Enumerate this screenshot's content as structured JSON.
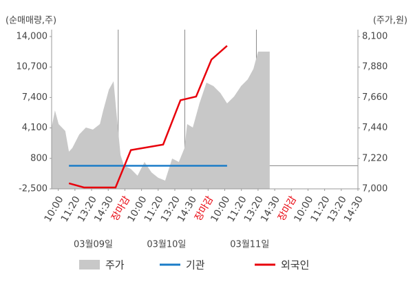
{
  "chart_data": {
    "type": "line",
    "ylabel": "(순매매량,주)",
    "y2label": "(주가,원)",
    "xlim": [
      0,
      92
    ],
    "xticks": [
      {
        "value": 2,
        "label": "10:00"
      },
      {
        "value": 7,
        "label": "11:20"
      },
      {
        "value": 12,
        "label": "13:20"
      },
      {
        "value": 17,
        "label": "14:30"
      },
      {
        "value": 22,
        "label": "장마감"
      },
      {
        "value": 27,
        "label": "10:00"
      },
      {
        "value": 32,
        "label": "11:20"
      },
      {
        "value": 37,
        "label": "13:20"
      },
      {
        "value": 42,
        "label": "14:30"
      },
      {
        "value": 47,
        "label": "장마감"
      },
      {
        "value": 52,
        "label": "10:00"
      },
      {
        "value": 57,
        "label": "11:20"
      },
      {
        "value": 62,
        "label": "13:20"
      },
      {
        "value": 67,
        "label": "14:30"
      },
      {
        "value": 72,
        "label": "장마감"
      },
      {
        "value": 77,
        "label": "10:00"
      },
      {
        "value": 82,
        "label": "11:20"
      },
      {
        "value": 87,
        "label": "13:20"
      },
      {
        "value": 92,
        "label": "14:30"
      }
    ],
    "highlight_ticks": [
      4,
      9,
      14
    ],
    "highlight_color": "#e8000b",
    "day_lines": [
      20,
      40,
      61.5
    ],
    "dates": [
      {
        "value": 12.5,
        "label": "03월09일"
      },
      {
        "value": 34.5,
        "label": "03월10일"
      },
      {
        "value": 59.5,
        "label": "03월11일"
      }
    ],
    "ylim": [
      -2500,
      14000
    ],
    "yticks": [
      {
        "value": -2500,
        "label": "-2,500"
      },
      800,
      {
        "value": 4100,
        "label": "4,100"
      },
      {
        "value": 7400,
        "label": "7,400"
      },
      {
        "value": 10700,
        "label": "10,700"
      },
      {
        "value": 14000,
        "label": "14,000"
      }
    ],
    "y2lim": [
      7000,
      8100
    ],
    "y2ticks": [
      {
        "value": 7000,
        "label": "7,000"
      },
      {
        "value": 7220,
        "label": "7,220"
      },
      {
        "value": 7440,
        "label": "7,440"
      },
      {
        "value": 7660,
        "label": "7,660"
      },
      {
        "value": 7880,
        "label": "7,880"
      },
      {
        "value": 8100,
        "label": "8,100"
      }
    ],
    "series": [
      {
        "name": "주가",
        "type": "area",
        "axis": "y2",
        "color": "#c8c8c8",
        "x": [
          0,
          1,
          2.1,
          4.1,
          5.2,
          6.2,
          8.3,
          10.3,
          12.4,
          14.5,
          15.5,
          17.2,
          18.6,
          19.6,
          20.7,
          21.7,
          23.8,
          25.8,
          27.9,
          30,
          32,
          34.1,
          36.2,
          38.2,
          39.9,
          40.7,
          42.4,
          44.4,
          46.5,
          48.6,
          50.7,
          52.7,
          54.8,
          56.9,
          58.9,
          60.6,
          62,
          64.1,
          65.5
        ],
        "values": [
          7443,
          7567,
          7468,
          7418,
          7269,
          7294,
          7393,
          7443,
          7428,
          7468,
          7567,
          7717,
          7777,
          7518,
          7244,
          7169,
          7144,
          7095,
          7194,
          7119,
          7080,
          7060,
          7219,
          7194,
          7294,
          7468,
          7443,
          7617,
          7767,
          7742,
          7692,
          7617,
          7667,
          7742,
          7791,
          7866,
          7991,
          7991,
          7991
        ]
      },
      {
        "name": "기관",
        "color": "#1a7cc8",
        "x": [
          5.2,
          52.7
        ],
        "values": [
          0,
          0
        ]
      },
      {
        "name": "외국인",
        "color": "#e8000b",
        "x": [
          5.2,
          9.7,
          19.2,
          23.8,
          33.5,
          38.7,
          43.4,
          48,
          52.7
        ],
        "values": [
          -1900,
          -2350,
          -2350,
          1700,
          2300,
          7100,
          7500,
          11500,
          13000
        ]
      }
    ]
  }
}
